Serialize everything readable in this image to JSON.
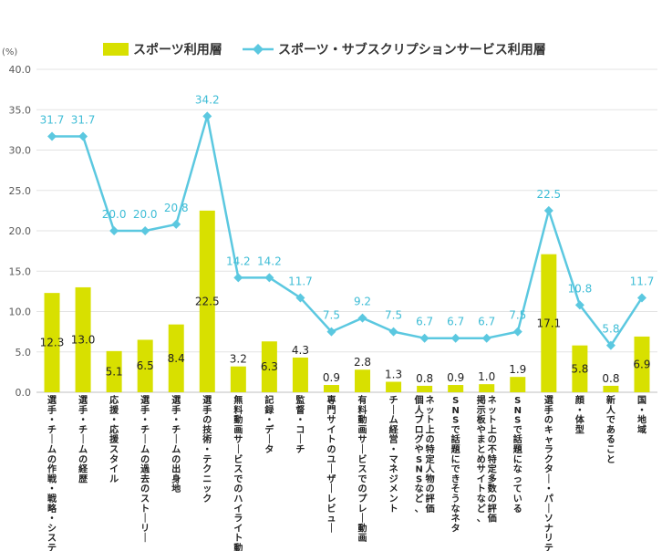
{
  "chart_data": {
    "type": "bar",
    "unit_label": "(%)",
    "ylim": [
      0,
      40
    ],
    "yticks": [
      "0.0",
      "5.0",
      "10.0",
      "15.0",
      "20.0",
      "25.0",
      "30.0",
      "35.0",
      "40.0"
    ],
    "grid": true,
    "legend_position": "top",
    "categories": [
      "選手・チームの作戦・戦略・システム",
      "選手・チームの経歴",
      "応援・応援スタイル",
      "選手・チームの過去のストーリー",
      "選手・チームの出身地",
      "選手の技術・テクニック",
      "無料動画サービスでのハイライト動画",
      "記録・データ",
      "監督・コーチ",
      "専門サイトのユーザーレビュー",
      "有料動画サービスでのプレー動画",
      "チーム経営・マネジメント",
      "個人ブログやSNSなど、ネット上の特定人物の評価",
      "SNSで話題にできそうなネタ",
      "掲示板やまとめサイトなど、ネット上の不特定多数の評価",
      "SNSで話題になっている",
      "選手のキャラクター・パーソナリティ",
      "顔・体型",
      "新人であること",
      "国・地域"
    ],
    "series": [
      {
        "name": "スポーツ利用層",
        "kind": "bar",
        "color": "#d8e000",
        "values": [
          12.3,
          13.0,
          5.1,
          6.5,
          8.4,
          22.5,
          3.2,
          6.3,
          4.3,
          0.9,
          2.8,
          1.3,
          0.8,
          0.9,
          1.0,
          1.9,
          17.1,
          5.8,
          0.8,
          6.9
        ]
      },
      {
        "name": "スポーツ・サブスクリプションサービス利用層",
        "kind": "line",
        "color": "#5bc8e0",
        "values": [
          31.7,
          31.7,
          20.0,
          20.0,
          20.8,
          34.2,
          14.2,
          14.2,
          11.7,
          7.5,
          9.2,
          7.5,
          6.7,
          6.7,
          6.7,
          7.5,
          22.5,
          10.8,
          5.8,
          11.7
        ]
      }
    ]
  }
}
